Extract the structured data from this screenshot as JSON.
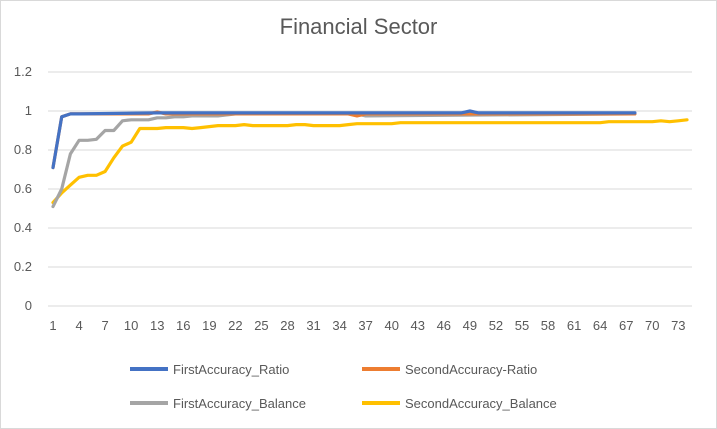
{
  "chart_data": {
    "type": "line",
    "title": "Financial Sector",
    "xlabel": "",
    "ylabel": "",
    "ylim": [
      0,
      1.2
    ],
    "y_ticks": [
      "0",
      "0.2",
      "0.4",
      "0.6",
      "0.8",
      "1",
      "1.2"
    ],
    "x_ticks": [
      "1",
      "4",
      "7",
      "10",
      "13",
      "16",
      "19",
      "22",
      "25",
      "28",
      "31",
      "34",
      "37",
      "40",
      "43",
      "46",
      "49",
      "52",
      "55",
      "58",
      "61",
      "64",
      "67",
      "70",
      "73"
    ],
    "x_max": 74,
    "grid": true,
    "legend_position": "bottom",
    "series": [
      {
        "name": "FirstAccuracy_Ratio",
        "color": "#4472C4",
        "x": [
          1,
          2,
          3,
          4,
          13,
          36,
          48,
          49,
          50,
          68
        ],
        "y": [
          0.71,
          0.97,
          0.985,
          0.985,
          0.99,
          0.99,
          0.99,
          1.0,
          0.99,
          0.99
        ]
      },
      {
        "name": "SecondAccuracy-Ratio",
        "color": "#ED7D31",
        "x": [
          1,
          2,
          3,
          4,
          12,
          13,
          14,
          20,
          35,
          36,
          37,
          68
        ],
        "y": [
          0.71,
          0.97,
          0.985,
          0.985,
          0.985,
          0.995,
          0.985,
          0.985,
          0.985,
          0.975,
          0.985,
          0.985
        ]
      },
      {
        "name": "FirstAccuracy_Balance",
        "color": "#A5A5A5",
        "x": [
          1,
          2,
          3,
          4,
          5,
          6,
          7,
          8,
          9,
          10,
          11,
          12,
          13,
          14,
          15,
          16,
          17,
          18,
          19,
          20,
          21,
          22,
          36,
          37,
          68
        ],
        "y": [
          0.51,
          0.6,
          0.78,
          0.85,
          0.85,
          0.855,
          0.9,
          0.9,
          0.95,
          0.955,
          0.955,
          0.955,
          0.965,
          0.965,
          0.97,
          0.97,
          0.975,
          0.975,
          0.975,
          0.975,
          0.98,
          0.985,
          0.985,
          0.975,
          0.985
        ]
      },
      {
        "name": "SecondAccuracy_Balance",
        "color": "#FFC000",
        "x": [
          1,
          2,
          3,
          4,
          5,
          6,
          7,
          8,
          9,
          10,
          11,
          12,
          13,
          14,
          15,
          16,
          17,
          18,
          19,
          20,
          21,
          22,
          23,
          24,
          25,
          26,
          27,
          28,
          29,
          30,
          31,
          32,
          33,
          34,
          35,
          36,
          37,
          38,
          39,
          40,
          41,
          42,
          43,
          44,
          45,
          46,
          47,
          48,
          49,
          50,
          51,
          52,
          53,
          54,
          55,
          56,
          57,
          58,
          59,
          60,
          61,
          62,
          63,
          64,
          65,
          66,
          67,
          68,
          69,
          70,
          71,
          72,
          73,
          74
        ],
        "y": [
          0.53,
          0.58,
          0.62,
          0.66,
          0.67,
          0.67,
          0.69,
          0.76,
          0.82,
          0.84,
          0.91,
          0.91,
          0.91,
          0.915,
          0.915,
          0.915,
          0.91,
          0.915,
          0.92,
          0.925,
          0.925,
          0.925,
          0.93,
          0.925,
          0.925,
          0.925,
          0.925,
          0.925,
          0.93,
          0.93,
          0.925,
          0.925,
          0.925,
          0.925,
          0.93,
          0.935,
          0.935,
          0.935,
          0.935,
          0.935,
          0.94,
          0.94,
          0.94,
          0.94,
          0.94,
          0.94,
          0.94,
          0.94,
          0.94,
          0.94,
          0.94,
          0.94,
          0.94,
          0.94,
          0.94,
          0.94,
          0.94,
          0.94,
          0.94,
          0.94,
          0.94,
          0.94,
          0.94,
          0.94,
          0.945,
          0.945,
          0.945,
          0.945,
          0.945,
          0.945,
          0.95,
          0.945,
          0.95,
          0.955
        ]
      }
    ]
  }
}
